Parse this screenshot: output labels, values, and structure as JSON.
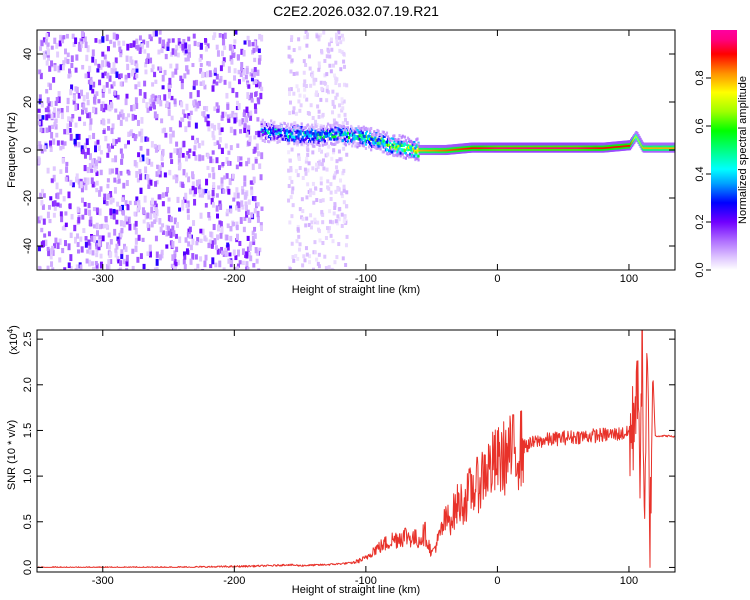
{
  "title": "C2E2.2026.032.07.19.R21",
  "chart_data": [
    {
      "type": "heatmap",
      "xlabel": "Height of straight line (km)",
      "ylabel": "Frequency (Hz)",
      "xlim": [
        -350,
        135
      ],
      "ylim": [
        -50,
        50
      ],
      "x_ticks": [
        -300,
        -200,
        -100,
        0,
        100
      ],
      "y_ticks": [
        -40,
        -20,
        0,
        20,
        40
      ],
      "colorbar": {
        "label": "Normalized spectral amplitude",
        "range": [
          0,
          1
        ],
        "ticks": [
          "0.0",
          "0.2",
          "0.4",
          "0.6",
          "0.8"
        ],
        "colors": [
          "#ffffff",
          "#e0c8ff",
          "#b070ff",
          "#7000ff",
          "#0000ff",
          "#00a0ff",
          "#00ffff",
          "#00ff80",
          "#00ff00",
          "#a0ff00",
          "#ffff00",
          "#ff9000",
          "#ff0000",
          "#ff0080",
          "#ff00a0"
        ]
      },
      "ridge": {
        "description_x": [
          -180,
          -160,
          -140,
          -120,
          -100,
          -80,
          -60,
          -40,
          -20,
          0,
          20,
          40,
          60,
          80,
          100,
          105,
          110,
          135
        ],
        "frequency_hz": [
          8,
          7,
          6,
          7,
          5,
          2,
          0,
          0,
          1,
          1,
          1,
          1,
          1,
          1,
          2,
          6,
          1,
          1
        ],
        "peak_amplitude": [
          0.45,
          0.5,
          0.5,
          0.55,
          0.6,
          0.65,
          0.8,
          0.85,
          0.9,
          0.95,
          0.95,
          0.95,
          0.95,
          0.9,
          0.9,
          0.7,
          0.8,
          0.8
        ]
      },
      "noise_region_x": [
        -350,
        -180
      ],
      "faint_region_x": [
        -160,
        -115
      ]
    },
    {
      "type": "line",
      "xlabel": "Height of straight line (km)",
      "ylabel": "SNR (10 * v/v)",
      "y_multiplier": "(x10",
      "y_multiplier_exp": "4",
      "y_multiplier_close": ")",
      "xlim": [
        -350,
        135
      ],
      "ylim": [
        -0.05,
        2.6
      ],
      "x_ticks": [
        -300,
        -200,
        -100,
        0,
        100
      ],
      "y_ticks": [
        "0.0",
        "0.5",
        "1.0",
        "1.5",
        "2.0",
        "2.5"
      ],
      "color": "#e8322a",
      "series": [
        {
          "x": [
            -350,
            -300,
            -250,
            -200,
            -170,
            -160,
            -150,
            -130,
            -110,
            -100,
            -95,
            -90,
            -80,
            -70,
            -60,
            -55,
            -50,
            -45,
            -40,
            -35,
            -30,
            -25,
            -20,
            -15,
            -10,
            -5,
            0,
            10,
            20,
            30,
            40,
            50,
            60,
            70,
            80,
            90,
            100,
            103,
            106,
            108,
            110,
            112,
            114,
            116,
            118,
            120,
            125,
            130,
            135
          ],
          "y": [
            0.0,
            0.0,
            0.0,
            0.01,
            0.02,
            0.03,
            0.02,
            0.03,
            0.05,
            0.1,
            0.18,
            0.22,
            0.3,
            0.35,
            0.3,
            0.38,
            0.15,
            0.3,
            0.5,
            0.55,
            0.7,
            0.72,
            0.85,
            0.9,
            1.05,
            1.1,
            1.15,
            1.25,
            1.32,
            1.38,
            1.4,
            1.42,
            1.43,
            1.44,
            1.45,
            1.46,
            1.47,
            1.45,
            2.2,
            1.0,
            2.55,
            0.3,
            2.3,
            0.1,
            2.2,
            1.44,
            1.44,
            1.44,
            1.43
          ]
        }
      ]
    }
  ]
}
